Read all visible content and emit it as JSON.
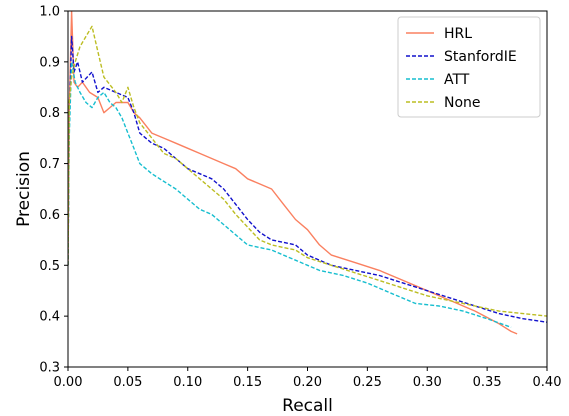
{
  "chart_data": {
    "type": "line",
    "xlabel": "Recall",
    "ylabel": "Precision",
    "xlim": [
      0.0,
      0.4
    ],
    "ylim": [
      0.3,
      1.0
    ],
    "xticks": [
      "0.00",
      "0.05",
      "0.10",
      "0.15",
      "0.20",
      "0.25",
      "0.30",
      "0.35",
      "0.40"
    ],
    "yticks": [
      "0.3",
      "0.4",
      "0.5",
      "0.6",
      "0.7",
      "0.8",
      "0.9",
      "1.0"
    ],
    "grid": false,
    "legend_position": "top-right",
    "series": [
      {
        "name": "HRL",
        "color": "#fa8060",
        "dash": "solid",
        "points": [
          [
            0.0,
            0.5
          ],
          [
            0.001,
            0.8
          ],
          [
            0.003,
            1.0
          ],
          [
            0.005,
            0.86
          ],
          [
            0.008,
            0.85
          ],
          [
            0.012,
            0.86
          ],
          [
            0.018,
            0.84
          ],
          [
            0.025,
            0.83
          ],
          [
            0.03,
            0.8
          ],
          [
            0.035,
            0.81
          ],
          [
            0.04,
            0.82
          ],
          [
            0.05,
            0.82
          ],
          [
            0.055,
            0.8
          ],
          [
            0.06,
            0.79
          ],
          [
            0.07,
            0.76
          ],
          [
            0.08,
            0.75
          ],
          [
            0.09,
            0.74
          ],
          [
            0.1,
            0.73
          ],
          [
            0.11,
            0.72
          ],
          [
            0.12,
            0.71
          ],
          [
            0.13,
            0.7
          ],
          [
            0.14,
            0.69
          ],
          [
            0.15,
            0.67
          ],
          [
            0.16,
            0.66
          ],
          [
            0.17,
            0.65
          ],
          [
            0.18,
            0.62
          ],
          [
            0.19,
            0.59
          ],
          [
            0.2,
            0.57
          ],
          [
            0.21,
            0.54
          ],
          [
            0.22,
            0.52
          ],
          [
            0.24,
            0.505
          ],
          [
            0.26,
            0.49
          ],
          [
            0.28,
            0.47
          ],
          [
            0.3,
            0.45
          ],
          [
            0.32,
            0.43
          ],
          [
            0.34,
            0.41
          ],
          [
            0.36,
            0.385
          ],
          [
            0.37,
            0.37
          ],
          [
            0.375,
            0.365
          ]
        ]
      },
      {
        "name": "StanfordIE",
        "color": "#1111cc",
        "dash": "dashed",
        "points": [
          [
            0.0,
            0.5
          ],
          [
            0.001,
            0.78
          ],
          [
            0.003,
            0.95
          ],
          [
            0.005,
            0.88
          ],
          [
            0.008,
            0.9
          ],
          [
            0.012,
            0.86
          ],
          [
            0.02,
            0.88
          ],
          [
            0.025,
            0.84
          ],
          [
            0.03,
            0.85
          ],
          [
            0.04,
            0.84
          ],
          [
            0.05,
            0.83
          ],
          [
            0.055,
            0.8
          ],
          [
            0.06,
            0.76
          ],
          [
            0.07,
            0.74
          ],
          [
            0.08,
            0.73
          ],
          [
            0.09,
            0.71
          ],
          [
            0.1,
            0.69
          ],
          [
            0.11,
            0.68
          ],
          [
            0.12,
            0.67
          ],
          [
            0.13,
            0.65
          ],
          [
            0.14,
            0.62
          ],
          [
            0.15,
            0.59
          ],
          [
            0.16,
            0.565
          ],
          [
            0.17,
            0.55
          ],
          [
            0.18,
            0.545
          ],
          [
            0.19,
            0.54
          ],
          [
            0.2,
            0.52
          ],
          [
            0.21,
            0.51
          ],
          [
            0.22,
            0.5
          ],
          [
            0.24,
            0.49
          ],
          [
            0.26,
            0.48
          ],
          [
            0.28,
            0.465
          ],
          [
            0.3,
            0.45
          ],
          [
            0.32,
            0.435
          ],
          [
            0.34,
            0.42
          ],
          [
            0.36,
            0.405
          ],
          [
            0.38,
            0.395
          ],
          [
            0.4,
            0.388
          ]
        ]
      },
      {
        "name": "ATT",
        "color": "#17becf",
        "dash": "dashed",
        "points": [
          [
            0.0,
            0.5
          ],
          [
            0.001,
            0.75
          ],
          [
            0.003,
            0.9
          ],
          [
            0.006,
            0.86
          ],
          [
            0.01,
            0.84
          ],
          [
            0.015,
            0.82
          ],
          [
            0.02,
            0.81
          ],
          [
            0.025,
            0.83
          ],
          [
            0.03,
            0.84
          ],
          [
            0.035,
            0.82
          ],
          [
            0.04,
            0.81
          ],
          [
            0.045,
            0.79
          ],
          [
            0.05,
            0.76
          ],
          [
            0.055,
            0.73
          ],
          [
            0.06,
            0.7
          ],
          [
            0.07,
            0.68
          ],
          [
            0.08,
            0.665
          ],
          [
            0.09,
            0.65
          ],
          [
            0.1,
            0.63
          ],
          [
            0.11,
            0.61
          ],
          [
            0.12,
            0.6
          ],
          [
            0.13,
            0.58
          ],
          [
            0.14,
            0.56
          ],
          [
            0.15,
            0.54
          ],
          [
            0.16,
            0.535
          ],
          [
            0.17,
            0.53
          ],
          [
            0.18,
            0.52
          ],
          [
            0.19,
            0.51
          ],
          [
            0.2,
            0.5
          ],
          [
            0.21,
            0.49
          ],
          [
            0.23,
            0.48
          ],
          [
            0.25,
            0.465
          ],
          [
            0.27,
            0.445
          ],
          [
            0.29,
            0.425
          ],
          [
            0.31,
            0.42
          ],
          [
            0.33,
            0.41
          ],
          [
            0.35,
            0.395
          ],
          [
            0.37,
            0.378
          ]
        ]
      },
      {
        "name": "None",
        "color": "#bcbd22",
        "dash": "dashed",
        "points": [
          [
            0.0,
            0.5
          ],
          [
            0.001,
            0.82
          ],
          [
            0.003,
            0.87
          ],
          [
            0.006,
            0.9
          ],
          [
            0.01,
            0.93
          ],
          [
            0.015,
            0.95
          ],
          [
            0.02,
            0.97
          ],
          [
            0.025,
            0.92
          ],
          [
            0.03,
            0.87
          ],
          [
            0.04,
            0.84
          ],
          [
            0.045,
            0.82
          ],
          [
            0.05,
            0.85
          ],
          [
            0.055,
            0.81
          ],
          [
            0.06,
            0.78
          ],
          [
            0.07,
            0.75
          ],
          [
            0.08,
            0.72
          ],
          [
            0.09,
            0.71
          ],
          [
            0.1,
            0.69
          ],
          [
            0.11,
            0.67
          ],
          [
            0.12,
            0.65
          ],
          [
            0.13,
            0.63
          ],
          [
            0.14,
            0.6
          ],
          [
            0.15,
            0.575
          ],
          [
            0.16,
            0.55
          ],
          [
            0.17,
            0.54
          ],
          [
            0.18,
            0.535
          ],
          [
            0.19,
            0.53
          ],
          [
            0.2,
            0.515
          ],
          [
            0.22,
            0.5
          ],
          [
            0.24,
            0.485
          ],
          [
            0.26,
            0.47
          ],
          [
            0.28,
            0.455
          ],
          [
            0.3,
            0.44
          ],
          [
            0.32,
            0.43
          ],
          [
            0.34,
            0.42
          ],
          [
            0.36,
            0.41
          ],
          [
            0.38,
            0.405
          ],
          [
            0.4,
            0.4
          ]
        ]
      }
    ]
  }
}
